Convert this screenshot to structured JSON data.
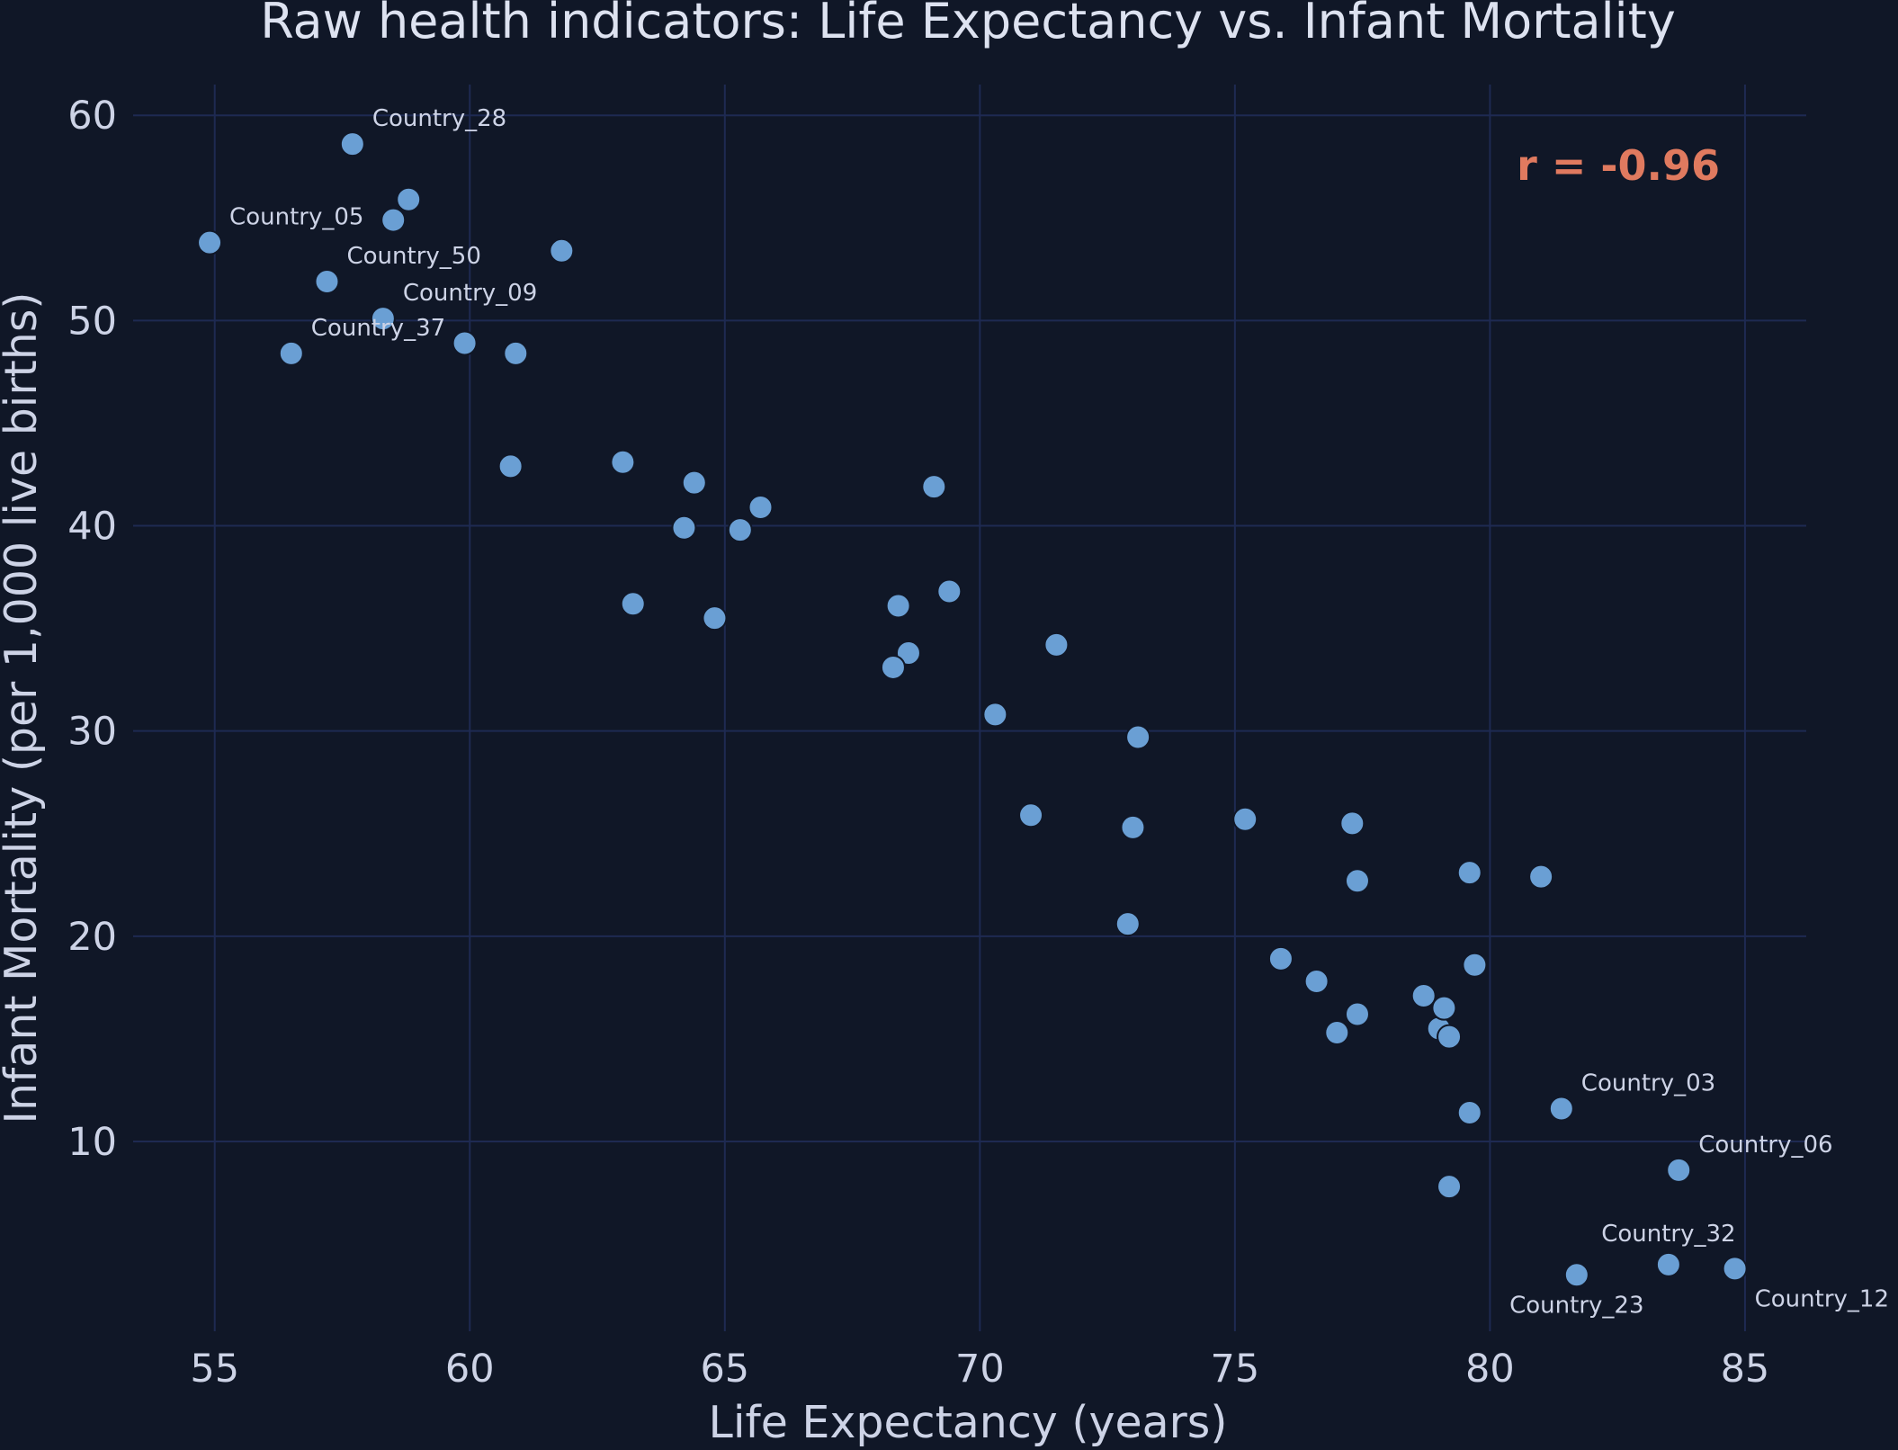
{
  "chart_data": {
    "type": "scatter",
    "title": "Raw health indicators: Life Expectancy vs. Infant Mortality",
    "xlabel": "Life Expectancy (years)",
    "ylabel": "Infant Mortality (per 1,000 live births)",
    "xlim": [
      53.4,
      86.2
    ],
    "ylim": [
      0.75,
      61.5
    ],
    "xticks": [
      55,
      60,
      65,
      70,
      75,
      80,
      85
    ],
    "yticks": [
      10,
      20,
      30,
      40,
      50,
      60
    ],
    "grid": true,
    "annotation": "r = -0.96",
    "colors": {
      "background": "#101727",
      "point": "#6a9fd4",
      "grid": "#1e2a52",
      "annotation": "#e07a5f",
      "text": "#cdd3e6"
    },
    "points": [
      {
        "x": 54.9,
        "y": 53.8,
        "label": "Country_05"
      },
      {
        "x": 57.7,
        "y": 58.6,
        "label": "Country_28"
      },
      {
        "x": 58.5,
        "y": 54.9
      },
      {
        "x": 58.8,
        "y": 55.9
      },
      {
        "x": 57.2,
        "y": 51.9,
        "label": "Country_50"
      },
      {
        "x": 58.3,
        "y": 50.1,
        "label": "Country_09"
      },
      {
        "x": 56.5,
        "y": 48.4,
        "label": "Country_37"
      },
      {
        "x": 59.9,
        "y": 48.9
      },
      {
        "x": 60.9,
        "y": 48.4
      },
      {
        "x": 61.8,
        "y": 53.4
      },
      {
        "x": 60.8,
        "y": 42.9
      },
      {
        "x": 63.0,
        "y": 43.1
      },
      {
        "x": 64.4,
        "y": 42.1
      },
      {
        "x": 64.2,
        "y": 39.9
      },
      {
        "x": 65.3,
        "y": 39.8
      },
      {
        "x": 65.7,
        "y": 40.9
      },
      {
        "x": 63.2,
        "y": 36.2
      },
      {
        "x": 64.8,
        "y": 35.5
      },
      {
        "x": 69.1,
        "y": 41.9
      },
      {
        "x": 68.4,
        "y": 36.1
      },
      {
        "x": 69.4,
        "y": 36.8
      },
      {
        "x": 68.6,
        "y": 33.8
      },
      {
        "x": 68.3,
        "y": 33.1
      },
      {
        "x": 71.5,
        "y": 34.2
      },
      {
        "x": 70.3,
        "y": 30.8
      },
      {
        "x": 73.1,
        "y": 29.7
      },
      {
        "x": 71.0,
        "y": 25.9
      },
      {
        "x": 73.0,
        "y": 25.3
      },
      {
        "x": 75.2,
        "y": 25.7
      },
      {
        "x": 77.3,
        "y": 25.5
      },
      {
        "x": 77.4,
        "y": 22.7
      },
      {
        "x": 79.6,
        "y": 23.1
      },
      {
        "x": 81.0,
        "y": 22.9
      },
      {
        "x": 72.9,
        "y": 20.6
      },
      {
        "x": 75.9,
        "y": 18.9
      },
      {
        "x": 76.6,
        "y": 17.8
      },
      {
        "x": 77.0,
        "y": 15.3
      },
      {
        "x": 77.4,
        "y": 16.2
      },
      {
        "x": 78.7,
        "y": 17.1
      },
      {
        "x": 79.0,
        "y": 15.5
      },
      {
        "x": 79.1,
        "y": 16.5
      },
      {
        "x": 79.2,
        "y": 15.1
      },
      {
        "x": 79.7,
        "y": 18.6
      },
      {
        "x": 79.6,
        "y": 11.4
      },
      {
        "x": 81.4,
        "y": 11.6,
        "label": "Country_03"
      },
      {
        "x": 79.2,
        "y": 7.8
      },
      {
        "x": 83.7,
        "y": 8.6,
        "label": "Country_06"
      },
      {
        "x": 81.7,
        "y": 3.5,
        "label": "Country_23"
      },
      {
        "x": 83.5,
        "y": 4.0,
        "label": "Country_32"
      },
      {
        "x": 84.8,
        "y": 3.8,
        "label": "Country_12"
      }
    ]
  }
}
